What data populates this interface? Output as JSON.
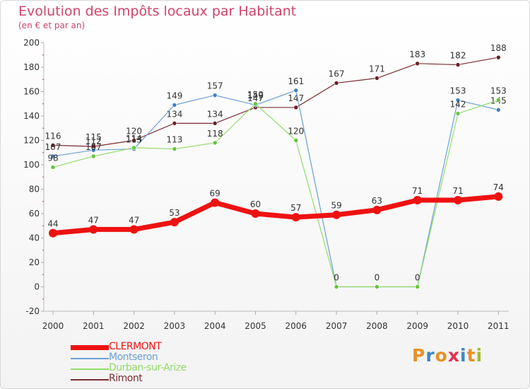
{
  "header": {
    "title": "Evolution des Impôts locaux par Habitant",
    "subtitle": "(en € et par an)"
  },
  "logo": {
    "text": "Proxiti",
    "colors": [
      "#e89026",
      "#3d86c6",
      "#e89026",
      "#e2304f",
      "#3d86c6",
      "#e89026",
      "#9dbf2c"
    ]
  },
  "legend": [
    {
      "name": "CLERMONT",
      "color": "#ee1111"
    },
    {
      "name": "Montseron",
      "color": "#6aa0d6"
    },
    {
      "name": "Durban-sur-Arize",
      "color": "#92dc6c"
    },
    {
      "name": "Rimont",
      "color": "#7a2d30"
    }
  ],
  "chart_data": {
    "type": "line",
    "title": "Evolution des Impôts locaux par Habitant",
    "subtitle": "(en € et par an)",
    "categories": [
      "2000",
      "2001",
      "2002",
      "2003",
      "2004",
      "2005",
      "2006",
      "2007",
      "2008",
      "2009",
      "2010",
      "2011"
    ],
    "ylim": [
      -20,
      200
    ],
    "yticks": [
      -20,
      0,
      20,
      40,
      60,
      80,
      100,
      120,
      140,
      160,
      180,
      200
    ],
    "grid": false,
    "legend_position": "bottom-left",
    "series": [
      {
        "name": "Rimont",
        "color": "#7a2d30",
        "marker": "#6b1f24",
        "width": 1.2,
        "values": [
          116,
          115,
          120,
          134,
          134,
          147,
          147,
          167,
          171,
          183,
          182,
          188
        ],
        "labels": [
          "116",
          "115",
          "120",
          "134",
          "134",
          "147",
          "147",
          "167",
          "171",
          "183",
          "182",
          "188"
        ]
      },
      {
        "name": "Montseron",
        "color": "#6aa0d6",
        "marker": "#3f7fc4",
        "width": 1.2,
        "values": [
          107,
          112,
          113,
          149,
          157,
          149,
          161,
          0,
          0,
          0,
          153,
          145
        ],
        "labels": [
          "107",
          "112",
          "113",
          "149",
          "157",
          "149",
          "161",
          "",
          "",
          "",
          "153",
          "145"
        ]
      },
      {
        "name": "Durban-sur-Arize",
        "color": "#92dc6c",
        "marker": "#67c43c",
        "width": 1.2,
        "values": [
          98,
          107,
          114,
          113,
          118,
          150,
          120,
          0,
          0,
          0,
          142,
          153
        ],
        "labels": [
          "98",
          "107",
          "114",
          "113",
          "118",
          "150",
          "120",
          "0",
          "0",
          "0",
          "142",
          "153"
        ]
      },
      {
        "name": "CLERMONT",
        "color": "#ee1111",
        "marker": "#ee1111",
        "width": 7,
        "values": [
          44,
          47,
          47,
          53,
          69,
          60,
          57,
          59,
          63,
          71,
          71,
          74
        ],
        "labels": [
          "44",
          "47",
          "47",
          "53",
          "69",
          "60",
          "57",
          "59",
          "63",
          "71",
          "71",
          "74"
        ]
      }
    ]
  }
}
